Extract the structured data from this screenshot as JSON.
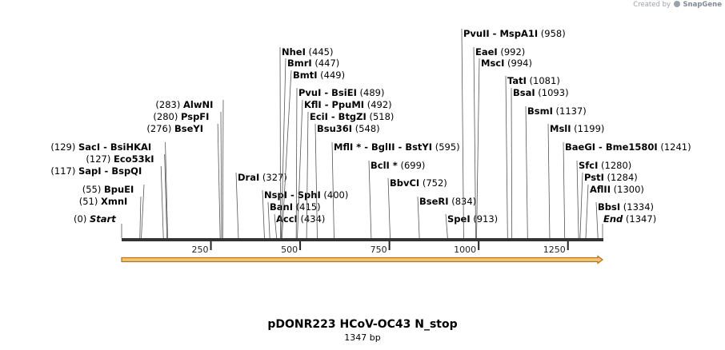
{
  "credit": {
    "prefix": "Created by",
    "brand": "SnapGene"
  },
  "title": "pDONR223 HCoV-OC43 N_stop",
  "size": "1347 bp",
  "seq_length": 1347,
  "axis_ticks": [
    "250",
    "500",
    "750",
    "1000",
    "1250"
  ],
  "sites": [
    {
      "names": [
        "Start"
      ],
      "pos": "(0)",
      "loc": 0,
      "italic": true
    },
    {
      "names": [
        "XmnI"
      ],
      "pos": "(51)",
      "loc": 51
    },
    {
      "names": [
        "BpuEI"
      ],
      "pos": "(55)",
      "loc": 55
    },
    {
      "names": [
        "SapI",
        "BspQI"
      ],
      "pos": "(117)",
      "loc": 117
    },
    {
      "names": [
        "Eco53kI"
      ],
      "pos": "(127)",
      "loc": 127
    },
    {
      "names": [
        "SacI",
        "BsiHKAI"
      ],
      "pos": "(129)",
      "loc": 129
    },
    {
      "names": [
        "BseYI"
      ],
      "pos": "(276)",
      "loc": 276
    },
    {
      "names": [
        "PspFI"
      ],
      "pos": "(280)",
      "loc": 280
    },
    {
      "names": [
        "AlwNI"
      ],
      "pos": "(283)",
      "loc": 283
    },
    {
      "names": [
        "DraI"
      ],
      "pos": "(327)",
      "loc": 327
    },
    {
      "names": [
        "AccI"
      ],
      "pos": "(434)",
      "loc": 434
    },
    {
      "names": [
        "BanI"
      ],
      "pos": "(415)",
      "loc": 415
    },
    {
      "names": [
        "NspI",
        "SphI"
      ],
      "pos": "(400)",
      "loc": 400
    },
    {
      "names": [
        "NheI"
      ],
      "pos": "(445)",
      "loc": 445
    },
    {
      "names": [
        "BmrI"
      ],
      "pos": "(447)",
      "loc": 447
    },
    {
      "names": [
        "BmtI"
      ],
      "pos": "(449)",
      "loc": 449
    },
    {
      "names": [
        "PvuI",
        "BsiEI"
      ],
      "pos": "(489)",
      "loc": 489
    },
    {
      "names": [
        "KflI",
        "PpuMI"
      ],
      "pos": "(492)",
      "loc": 492
    },
    {
      "names": [
        "EciI",
        "BtgZI"
      ],
      "pos": "(518)",
      "loc": 518
    },
    {
      "names": [
        "Bsu36I"
      ],
      "pos": "(548)",
      "loc": 548
    },
    {
      "names": [
        "MflI *",
        "BglII",
        "BstYI"
      ],
      "pos": "(595)",
      "loc": 595
    },
    {
      "names": [
        "BclI *"
      ],
      "pos": "(699)",
      "loc": 699
    },
    {
      "names": [
        "BbvCI"
      ],
      "pos": "(752)",
      "loc": 752
    },
    {
      "names": [
        "BseRI"
      ],
      "pos": "(834)",
      "loc": 834
    },
    {
      "names": [
        "SpeI"
      ],
      "pos": "(913)",
      "loc": 913
    },
    {
      "names": [
        "PvuII",
        "MspA1I"
      ],
      "pos": "(958)",
      "loc": 958
    },
    {
      "names": [
        "EaeI"
      ],
      "pos": "(992)",
      "loc": 992
    },
    {
      "names": [
        "MscI"
      ],
      "pos": "(994)",
      "loc": 994
    },
    {
      "names": [
        "TatI"
      ],
      "pos": "(1081)",
      "loc": 1081
    },
    {
      "names": [
        "BsaI"
      ],
      "pos": "(1093)",
      "loc": 1093
    },
    {
      "names": [
        "BsmI"
      ],
      "pos": "(1137)",
      "loc": 1137
    },
    {
      "names": [
        "MslI"
      ],
      "pos": "(1199)",
      "loc": 1199
    },
    {
      "names": [
        "BaeGI",
        "Bme1580I"
      ],
      "pos": "(1241)",
      "loc": 1241
    },
    {
      "names": [
        "SfcI"
      ],
      "pos": "(1280)",
      "loc": 1280
    },
    {
      "names": [
        "PstI"
      ],
      "pos": "(1284)",
      "loc": 1284
    },
    {
      "names": [
        "AflII"
      ],
      "pos": "(1300)",
      "loc": 1300
    },
    {
      "names": [
        "BbsI"
      ],
      "pos": "(1334)",
      "loc": 1334
    },
    {
      "names": [
        "End"
      ],
      "pos": "(1347)",
      "loc": 1347,
      "italic": true
    }
  ],
  "colors": {
    "feature_fill": "#f5c27a",
    "feature_stroke": "#b8731c",
    "line": "#555555"
  }
}
